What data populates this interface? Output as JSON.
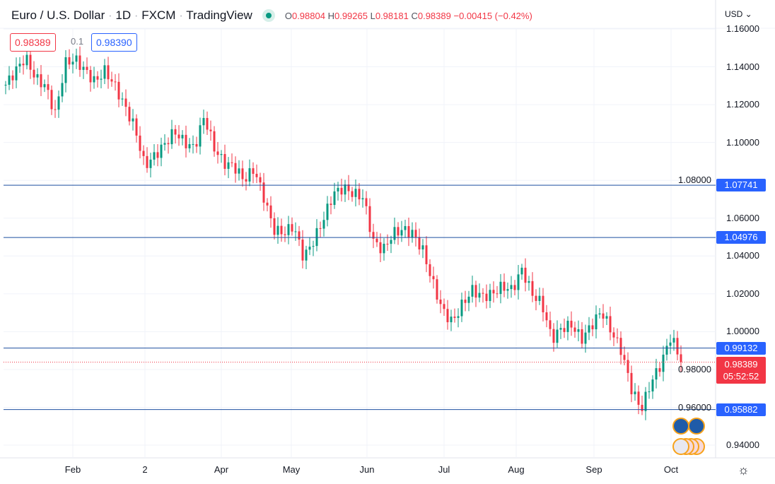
{
  "header": {
    "symbol": "Euro / U.S. Dollar",
    "interval": "1D",
    "source": "FXCM",
    "platform": "TradingView",
    "sep": "·"
  },
  "ohlc": {
    "o_label": "O",
    "o": "0.98804",
    "h_label": "H",
    "h": "0.99265",
    "l_label": "L",
    "l": "0.98181",
    "c_label": "C",
    "c": "0.98389",
    "change": "−0.00415 (−0.42%)"
  },
  "currency": "USD",
  "sell_price": "0.98389",
  "spread": "0.1",
  "buy_price": "0.98390",
  "colors": {
    "up": "#089981",
    "down": "#f23645",
    "line": "#2962ff",
    "hline": "#1e4fa0"
  },
  "chart_data": {
    "type": "candlestick",
    "ylim": [
      0.93,
      1.165
    ],
    "y_ticks": [
      "1.16000",
      "1.14000",
      "1.12000",
      "1.10000",
      "1.08000",
      "1.06000",
      "1.04000",
      "1.02000",
      "1.00000",
      "0.98000",
      "0.96000",
      "0.94000"
    ],
    "x_ticks": [
      "Feb",
      "2",
      "Apr",
      "May",
      "Jun",
      "Jul",
      "Aug",
      "Sep",
      "Oct"
    ],
    "closes": [
      1.1305,
      1.138,
      1.145,
      1.134,
      1.13,
      1.115,
      1.142,
      1.144,
      1.138,
      1.132,
      1.138,
      1.13,
      1.119,
      1.108,
      1.0875,
      1.093,
      1.099,
      1.106,
      1.1,
      1.097,
      1.114,
      1.097,
      1.089,
      1.0875,
      1.08,
      1.086,
      1.071,
      1.054,
      1.052,
      1.056,
      1.039,
      1.048,
      1.0595,
      1.073,
      1.076,
      1.073,
      1.071,
      1.048,
      1.043,
      1.052,
      1.054,
      1.052,
      1.043,
      1.026,
      1.011,
      1.005,
      1.0147,
      1.022,
      1.0185,
      1.02,
      1.024,
      1.022,
      1.033,
      1.02,
      1.0147,
      0.996,
      1.002,
      1.0035,
      0.996,
      1.0035,
      1.011,
      1.0,
      0.99,
      0.97,
      0.9587,
      0.9735,
      0.983,
      0.998,
      0.98389
    ],
    "horizontal_lines": [
      "1.07741",
      "1.04976",
      "0.99132",
      "0.95882"
    ],
    "last_price": "0.98389",
    "countdown": "05:52:52"
  }
}
